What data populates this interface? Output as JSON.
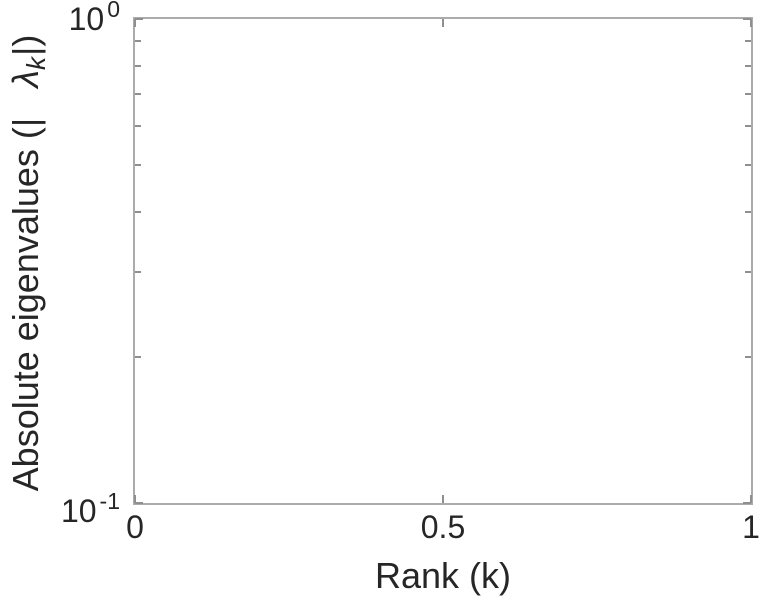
{
  "chart_data": {
    "type": "line",
    "title": "",
    "xlabel": "Rank (k)",
    "ylabel": "Absolute eigenvalues (|λ_k|)",
    "ylabel_parts": {
      "prefix": "Absolute eigenvalues (|",
      "lambda": "λ",
      "lambda_sub": "k",
      "suffix": "|)"
    },
    "xlim": [
      0,
      1
    ],
    "x_ticks": [
      0,
      0.5,
      1
    ],
    "x_tick_labels": [
      "0",
      "0.5",
      "1"
    ],
    "yscale": "log",
    "ylim": [
      0.1,
      1
    ],
    "y_ticks": [
      1,
      0.1
    ],
    "y_tick_labels": [
      {
        "base": "10",
        "exp": "0"
      },
      {
        "base": "10",
        "exp": "-1"
      }
    ],
    "y_minor_ticks": [
      0.9,
      0.8,
      0.7,
      0.6,
      0.5,
      0.4,
      0.3,
      0.2
    ],
    "series": [],
    "grid": false,
    "box": true,
    "legend": null,
    "colors": {
      "axis": "#ababab",
      "tick": "#8f8f8f",
      "text": "#262626",
      "background": "#ffffff"
    }
  }
}
